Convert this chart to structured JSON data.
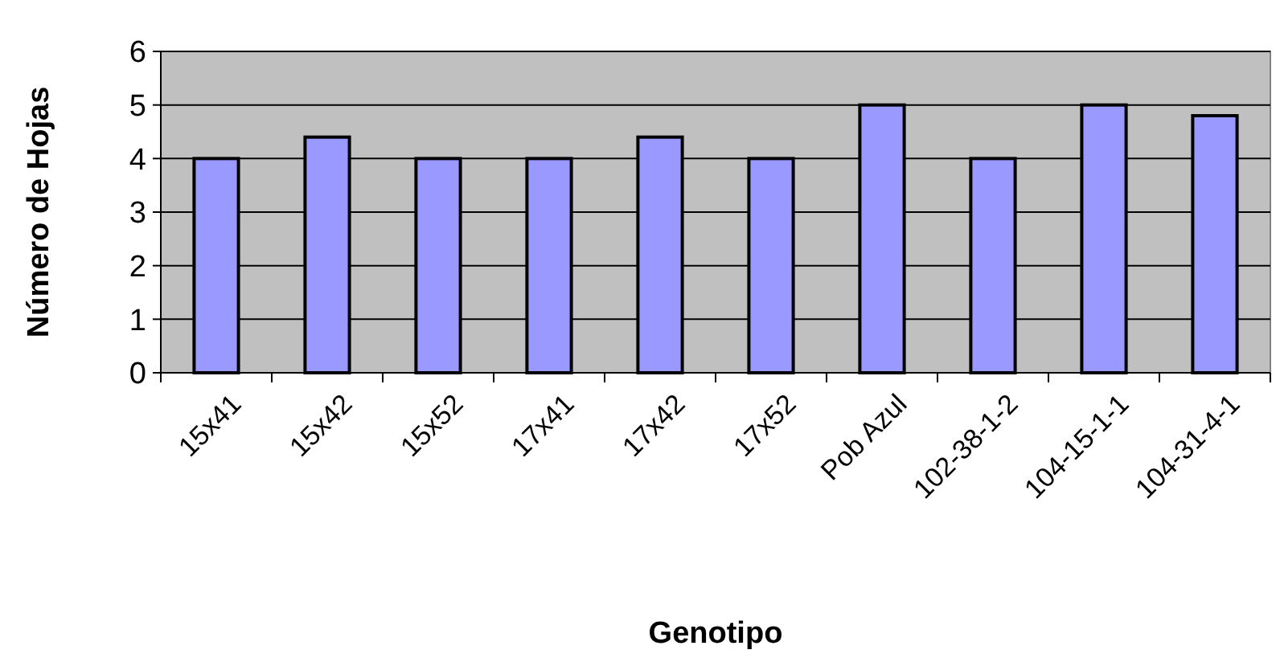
{
  "chart_data": {
    "type": "bar",
    "xlabel": "Genotipo",
    "ylabel": "Número de Hojas",
    "categories": [
      "15x41",
      "15x42",
      "15x52",
      "17x41",
      "17x42",
      "17x52",
      "Pob Azul",
      "102-38-1-2",
      "104-15-1-1",
      "104-31-4-1"
    ],
    "values": [
      4,
      4.4,
      4,
      4,
      4.4,
      4,
      5,
      4,
      5,
      4.8
    ],
    "color": "#9999ff",
    "ylim": [
      0,
      6
    ],
    "yticks": [
      0,
      1,
      2,
      3,
      4,
      5,
      6
    ],
    "grid": "y"
  }
}
